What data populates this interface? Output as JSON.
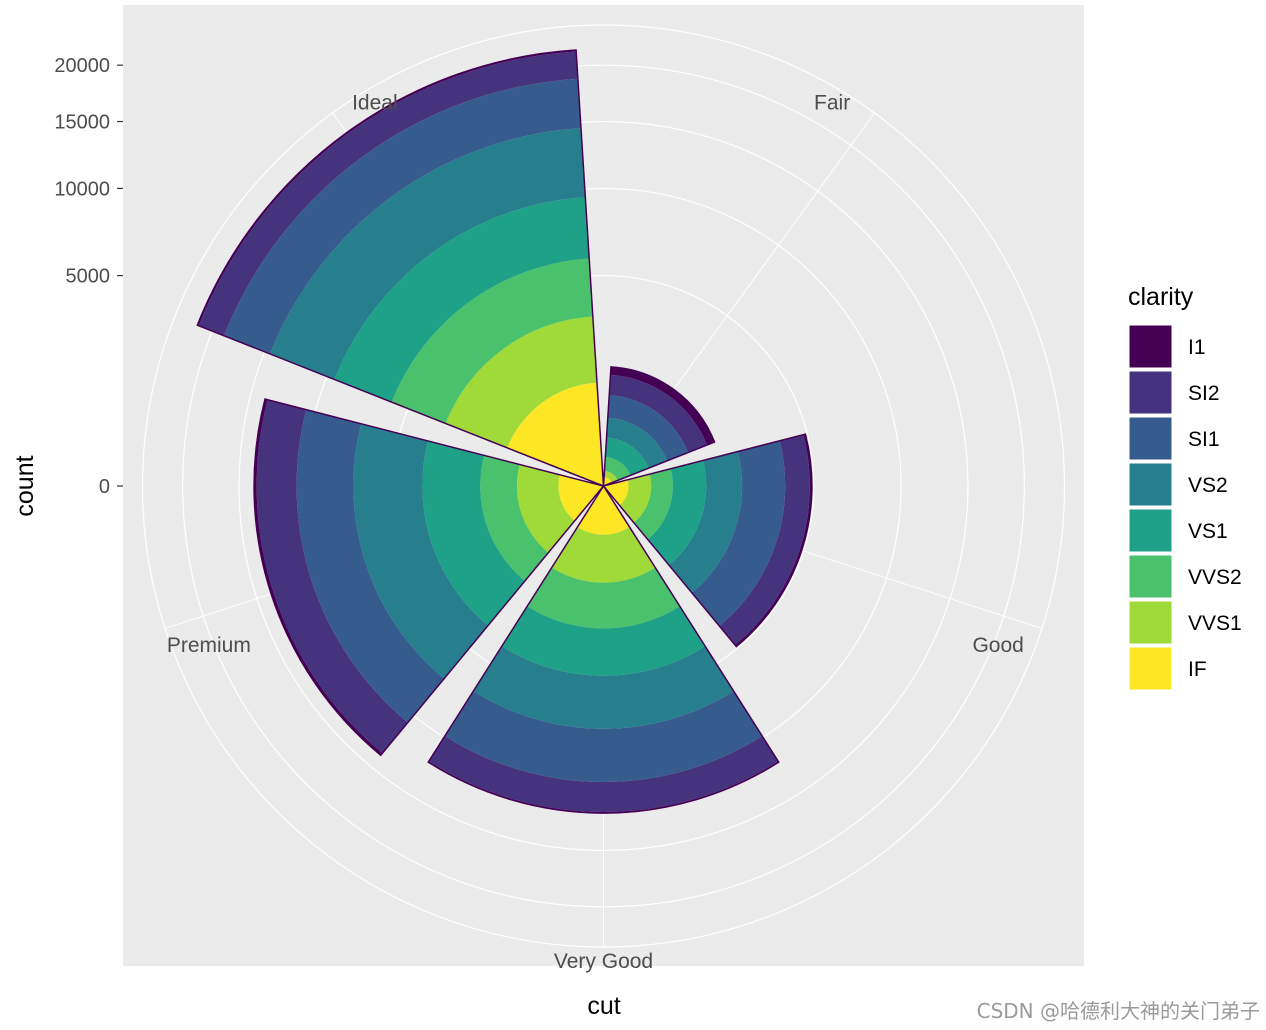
{
  "chart_data": {
    "type": "bar",
    "coord": "polar",
    "position": "stacked",
    "xlabel": "cut",
    "ylabel": "count",
    "categories": [
      "Fair",
      "Good",
      "Very Good",
      "Premium",
      "Ideal"
    ],
    "yticks": [
      0,
      5000,
      10000,
      15000,
      20000
    ],
    "ylim": [
      0,
      24000
    ],
    "legend": {
      "title": "clarity",
      "position": "right"
    },
    "series": [
      {
        "name": "I1",
        "color": "#440154",
        "values": [
          210,
          96,
          84,
          205,
          146
        ]
      },
      {
        "name": "SI2",
        "color": "#46337E",
        "values": [
          466,
          1081,
          2100,
          2949,
          2598
        ]
      },
      {
        "name": "SI1",
        "color": "#365C8D",
        "values": [
          408,
          1560,
          3240,
          3575,
          4282
        ]
      },
      {
        "name": "VS2",
        "color": "#277F8E",
        "values": [
          261,
          978,
          2591,
          3357,
          5071
        ]
      },
      {
        "name": "VS1",
        "color": "#1FA187",
        "values": [
          170,
          648,
          1775,
          1989,
          3589
        ]
      },
      {
        "name": "VVS2",
        "color": "#4AC16D",
        "values": [
          69,
          286,
          1235,
          870,
          2606
        ]
      },
      {
        "name": "VVS1",
        "color": "#A0DA39",
        "values": [
          17,
          186,
          789,
          616,
          2047
        ]
      },
      {
        "name": "IF",
        "color": "#FDE725",
        "values": [
          9,
          71,
          268,
          230,
          1212
        ]
      }
    ]
  },
  "watermark": "CSDN @哈德利大神的关门弟子"
}
